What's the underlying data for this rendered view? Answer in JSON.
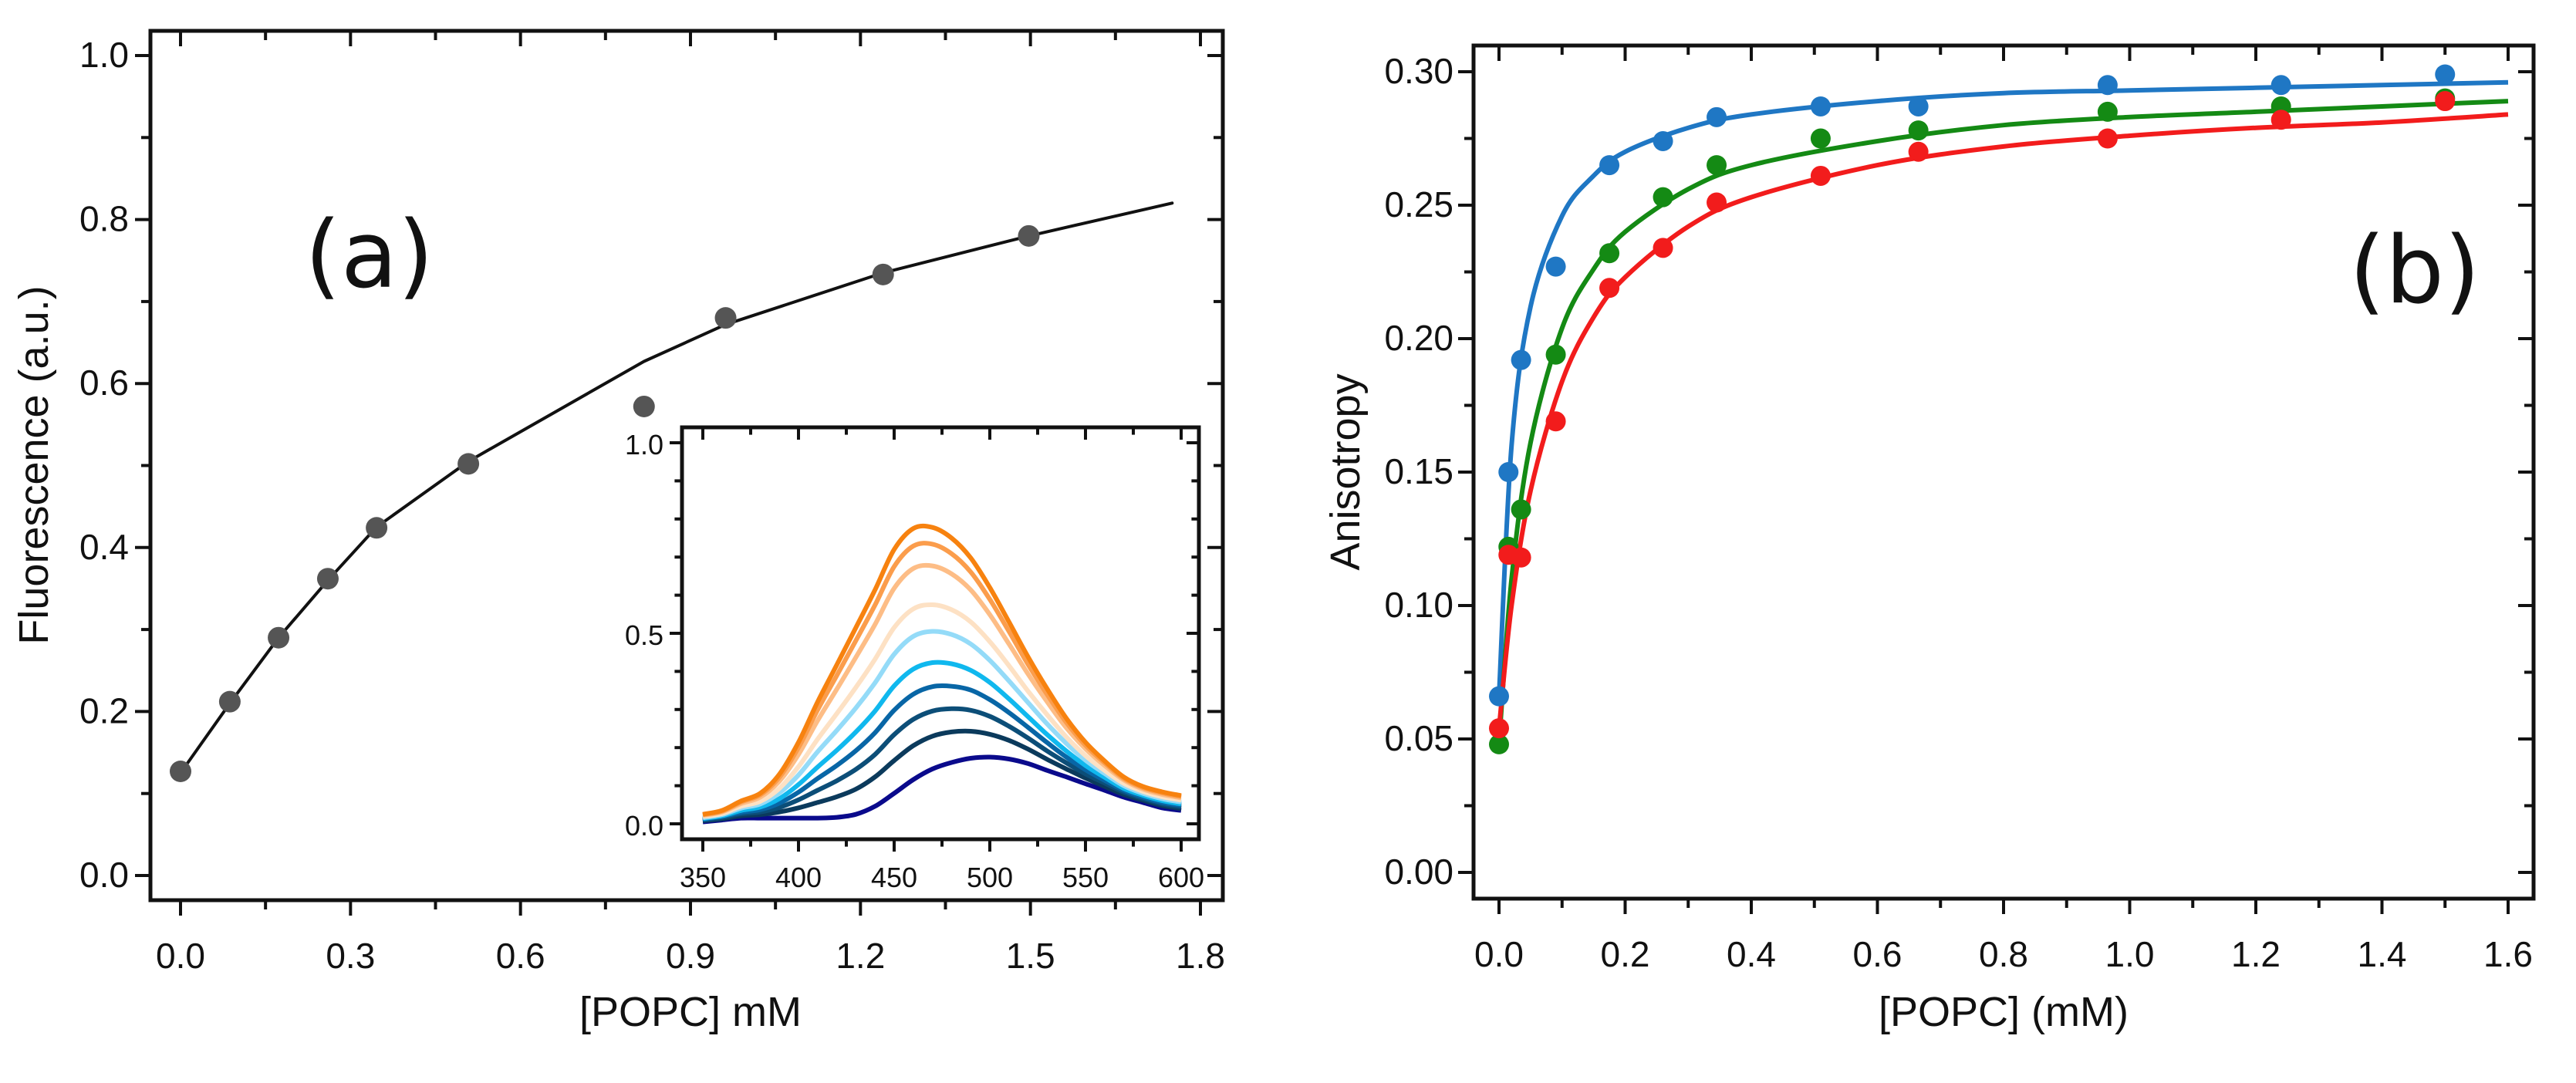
{
  "chart_data": [
    {
      "type": "scatter",
      "panel_label": "(a)",
      "xlabel": "[POPC] mM",
      "ylabel": "Fluorescence (a.u.)",
      "xlim": [
        -0.05,
        1.85
      ],
      "ylim": [
        -0.06,
        1.06
      ],
      "xticks": [
        "0.0",
        "0.3",
        "0.6",
        "0.9",
        "1.2",
        "1.5",
        "1.8"
      ],
      "yticks": [
        "0.0",
        "0.2",
        "0.4",
        "0.6",
        "0.8",
        "1.0"
      ],
      "marker_color": "#555555",
      "fit_color": "#111111",
      "points": {
        "x": [
          0,
          0.087,
          0.173,
          0.26,
          0.346,
          0.508,
          0.818,
          0.962,
          1.24,
          1.497
        ],
        "y": [
          0.127,
          0.212,
          0.29,
          0.362,
          0.424,
          0.502,
          0.572,
          0.68,
          0.733,
          0.78
        ]
      },
      "fit": {
        "x": [
          0,
          0.087,
          0.173,
          0.26,
          0.346,
          0.508,
          0.818,
          0.962,
          1.24,
          1.497,
          1.75
        ],
        "y": [
          0.125,
          0.21,
          0.29,
          0.36,
          0.425,
          0.505,
          0.627,
          0.672,
          0.735,
          0.78,
          0.82
        ]
      },
      "inset": {
        "type": "line",
        "xlim": [
          345,
          610
        ],
        "ylim": [
          -0.03,
          1.03
        ],
        "xticks": [
          "350",
          "400",
          "450",
          "500",
          "550",
          "600"
        ],
        "yticks": [
          "0.0",
          "0.5",
          "1.0"
        ],
        "x": [
          350,
          360,
          370,
          380,
          390,
          400,
          410,
          420,
          430,
          440,
          450,
          460,
          470,
          480,
          490,
          500,
          510,
          520,
          530,
          540,
          550,
          560,
          570,
          580,
          590,
          600
        ],
        "series": [
          {
            "color": "#0a0a8c",
            "values": [
              0.005,
              0.01,
              0.015,
              0.015,
              0.015,
              0.015,
              0.015,
              0.017,
              0.025,
              0.046,
              0.08,
              0.116,
              0.144,
              0.161,
              0.172,
              0.175,
              0.17,
              0.158,
              0.14,
              0.123,
              0.105,
              0.088,
              0.07,
              0.056,
              0.042,
              0.035
            ]
          },
          {
            "color": "#0b3a5c",
            "values": [
              0.008,
              0.013,
              0.021,
              0.024,
              0.031,
              0.042,
              0.056,
              0.071,
              0.091,
              0.123,
              0.166,
              0.205,
              0.23,
              0.241,
              0.243,
              0.235,
              0.219,
              0.196,
              0.169,
              0.144,
              0.12,
              0.098,
              0.077,
              0.062,
              0.048,
              0.04
            ]
          },
          {
            "color": "#0c4e78",
            "values": [
              0.01,
              0.016,
              0.026,
              0.031,
              0.043,
              0.063,
              0.088,
              0.113,
              0.143,
              0.182,
              0.234,
              0.274,
              0.296,
              0.302,
              0.298,
              0.282,
              0.256,
              0.225,
              0.191,
              0.16,
              0.131,
              0.107,
              0.083,
              0.066,
              0.052,
              0.044
            ]
          },
          {
            "color": "#0866a6",
            "values": [
              0.012,
              0.019,
              0.03,
              0.037,
              0.054,
              0.083,
              0.119,
              0.153,
              0.192,
              0.239,
              0.298,
              0.34,
              0.36,
              0.361,
              0.351,
              0.326,
              0.292,
              0.253,
              0.213,
              0.175,
              0.142,
              0.114,
              0.088,
              0.07,
              0.056,
              0.048
            ]
          },
          {
            "color": "#10b8ee",
            "values": [
              0.014,
              0.021,
              0.035,
              0.044,
              0.066,
              0.103,
              0.149,
              0.193,
              0.241,
              0.296,
              0.362,
              0.406,
              0.423,
              0.42,
              0.403,
              0.371,
              0.328,
              0.281,
              0.234,
              0.191,
              0.153,
              0.122,
              0.093,
              0.075,
              0.061,
              0.052
            ]
          },
          {
            "color": "#94dbf8",
            "values": [
              0.016,
              0.024,
              0.041,
              0.052,
              0.081,
              0.128,
              0.189,
              0.245,
              0.304,
              0.37,
              0.445,
              0.492,
              0.505,
              0.497,
              0.472,
              0.429,
              0.375,
              0.318,
              0.262,
              0.211,
              0.167,
              0.132,
              0.1,
              0.08,
              0.066,
              0.057
            ]
          },
          {
            "color": "#fde1c4",
            "values": [
              0.019,
              0.027,
              0.046,
              0.059,
              0.093,
              0.15,
              0.222,
              0.289,
              0.358,
              0.432,
              0.515,
              0.564,
              0.575,
              0.562,
              0.53,
              0.478,
              0.415,
              0.348,
              0.286,
              0.228,
              0.179,
              0.14,
              0.106,
              0.085,
              0.071,
              0.062
            ]
          },
          {
            "color": "#fdbd86",
            "values": [
              0.022,
              0.031,
              0.053,
              0.07,
              0.112,
              0.182,
              0.271,
              0.353,
              0.437,
              0.523,
              0.618,
              0.67,
              0.677,
              0.656,
              0.614,
              0.549,
              0.472,
              0.393,
              0.32,
              0.252,
              0.197,
              0.153,
              0.115,
              0.091,
              0.077,
              0.068
            ]
          },
          {
            "color": "#fb9d4c",
            "values": [
              0.024,
              0.033,
              0.057,
              0.076,
              0.122,
              0.2,
              0.299,
              0.389,
              0.481,
              0.574,
              0.675,
              0.729,
              0.734,
              0.709,
              0.661,
              0.589,
              0.505,
              0.418,
              0.339,
              0.266,
              0.206,
              0.16,
              0.119,
              0.095,
              0.081,
              0.071
            ]
          },
          {
            "color": "#f7820f",
            "values": [
              0.025,
              0.035,
              0.06,
              0.08,
              0.13,
              0.214,
              0.32,
              0.417,
              0.515,
              0.614,
              0.72,
              0.775,
              0.778,
              0.75,
              0.698,
              0.62,
              0.53,
              0.438,
              0.354,
              0.277,
              0.214,
              0.165,
              0.123,
              0.098,
              0.084,
              0.074
            ]
          }
        ]
      }
    },
    {
      "type": "scatter",
      "panel_label": "(b)",
      "xlabel": "[POPC] (mM)",
      "ylabel": "Anisotropy",
      "xlim": [
        -0.04,
        1.64
      ],
      "ylim": [
        -0.01,
        0.31
      ],
      "xticks": [
        "0.0",
        "0.2",
        "0.4",
        "0.6",
        "0.8",
        "1.0",
        "1.2",
        "1.4",
        "1.6"
      ],
      "yticks": [
        "0.00",
        "0.05",
        "0.10",
        "0.15",
        "0.20",
        "0.25",
        "0.30"
      ],
      "x": [
        0,
        0.015,
        0.035,
        0.09,
        0.175,
        0.26,
        0.345,
        0.51,
        0.665,
        0.965,
        1.24,
        1.5
      ],
      "fit_x": [
        0,
        0.02,
        0.05,
        0.1,
        0.15,
        0.2,
        0.3,
        0.4,
        0.6,
        0.8,
        1.0,
        1.2,
        1.4,
        1.6
      ],
      "series": [
        {
          "color": "#1f77c4",
          "values": [
            0.066,
            0.15,
            0.192,
            0.227,
            0.265,
            0.274,
            0.283,
            0.287,
            0.287,
            0.295,
            0.295,
            0.299
          ],
          "fit": [
            0.066,
            0.16,
            0.212,
            0.246,
            0.261,
            0.27,
            0.279,
            0.284,
            0.289,
            0.292,
            0.293,
            0.294,
            0.295,
            0.296
          ]
        },
        {
          "color": "#148a14",
          "values": [
            0.048,
            0.122,
            0.136,
            0.194,
            0.232,
            0.253,
            0.265,
            0.275,
            0.278,
            0.285,
            0.287,
            0.29
          ],
          "fit": [
            0.048,
            0.11,
            0.161,
            0.204,
            0.226,
            0.24,
            0.256,
            0.265,
            0.274,
            0.28,
            0.283,
            0.285,
            0.287,
            0.289
          ]
        },
        {
          "color": "#f21c1c",
          "values": [
            0.054,
            0.119,
            0.118,
            0.169,
            0.219,
            0.234,
            0.251,
            0.261,
            0.27,
            0.275,
            0.282,
            0.289
          ],
          "fit": [
            0.054,
            0.1,
            0.143,
            0.184,
            0.208,
            0.223,
            0.242,
            0.253,
            0.265,
            0.272,
            0.276,
            0.279,
            0.281,
            0.284
          ]
        }
      ]
    }
  ]
}
